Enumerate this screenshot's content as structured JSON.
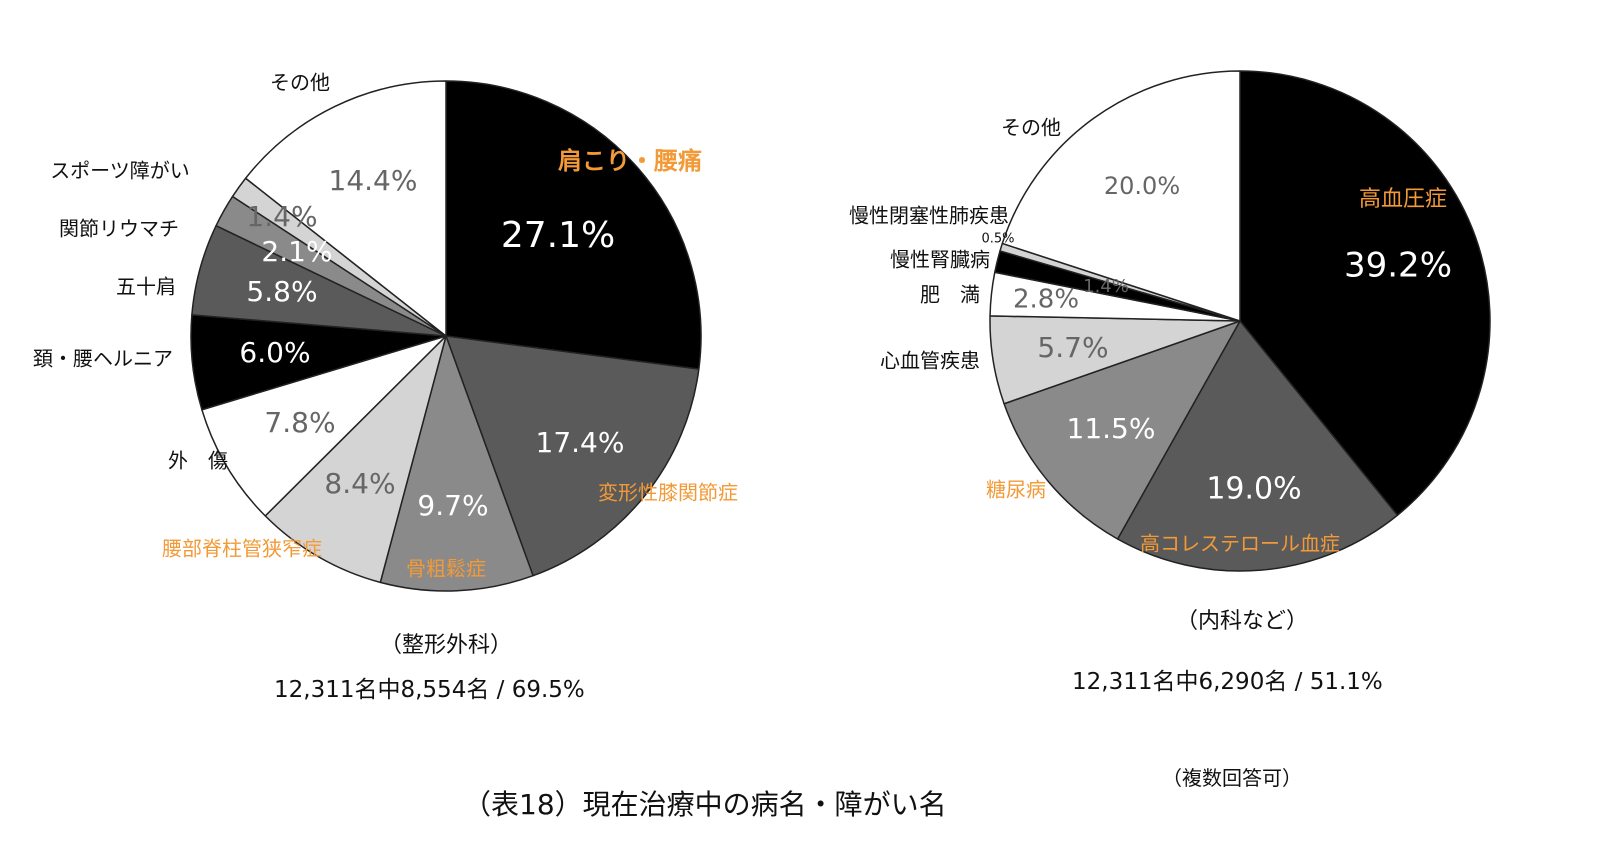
{
  "chart_data": [
    {
      "type": "pie",
      "title": "（整形外科）",
      "subtitle": "12,311名中8,554名 / 69.5%",
      "slices": [
        {
          "name": "肩こり・腰痛",
          "value": 27.1,
          "label": "27.1%",
          "color": "#000000",
          "label_color": "#ffffff",
          "name_color": "#f29a38"
        },
        {
          "name": "変形性膝関節症",
          "value": 17.4,
          "label": "17.4%",
          "color": "#5a5a5a",
          "label_color": "#ffffff",
          "name_color": "#f29a38"
        },
        {
          "name": "骨粗鬆症",
          "value": 9.7,
          "label": "9.7%",
          "color": "#8a8a8a",
          "label_color": "#ffffff",
          "name_color": "#f29a38"
        },
        {
          "name": "腰部脊柱管狭窄症",
          "value": 8.4,
          "label": "8.4%",
          "color": "#d4d4d4",
          "label_color": "#666666",
          "name_color": "#f29a38"
        },
        {
          "name": "外　傷",
          "value": 7.8,
          "label": "7.8%",
          "color": "#ffffff",
          "label_color": "#666666",
          "name_color": "#111111"
        },
        {
          "name": "頚・腰ヘルニア",
          "value": 6.0,
          "label": "6.0%",
          "color": "#000000",
          "label_color": "#ffffff",
          "name_color": "#111111"
        },
        {
          "name": "五十肩",
          "value": 5.8,
          "label": "5.8%",
          "color": "#5a5a5a",
          "label_color": "#ffffff",
          "name_color": "#111111"
        },
        {
          "name": "関節リウマチ",
          "value": 2.1,
          "label": "2.1%",
          "color": "#8a8a8a",
          "label_color": "#ffffff",
          "name_color": "#111111"
        },
        {
          "name": "スポーツ障がい",
          "value": 1.4,
          "label": "1.4%",
          "color": "#d4d4d4",
          "label_color": "#666666",
          "name_color": "#111111"
        },
        {
          "name": "その他",
          "value": 14.4,
          "label": "14.4%",
          "color": "#ffffff",
          "label_color": "#666666",
          "name_color": "#111111"
        }
      ]
    },
    {
      "type": "pie",
      "title": "（内科など）",
      "subtitle": "12,311名中6,290名 / 51.1%",
      "slices": [
        {
          "name": "高血圧症",
          "value": 39.2,
          "label": "39.2%",
          "color": "#000000",
          "label_color": "#ffffff",
          "name_color": "#f29a38"
        },
        {
          "name": "高コレステロール血症",
          "value": 19.0,
          "label": "19.0%",
          "color": "#5a5a5a",
          "label_color": "#ffffff",
          "name_color": "#f29a38"
        },
        {
          "name": "糖尿病",
          "value": 11.5,
          "label": "11.5%",
          "color": "#8a8a8a",
          "label_color": "#ffffff",
          "name_color": "#f29a38"
        },
        {
          "name": "心血管疾患",
          "value": 5.7,
          "label": "5.7%",
          "color": "#d4d4d4",
          "label_color": "#666666",
          "name_color": "#111111"
        },
        {
          "name": "肥　満",
          "value": 2.8,
          "label": "2.8%",
          "color": "#ffffff",
          "label_color": "#666666",
          "name_color": "#111111"
        },
        {
          "name": "慢性腎臓病",
          "value": 1.4,
          "label": "1.4%",
          "color": "#000000",
          "label_color": "#666666",
          "name_color": "#111111"
        },
        {
          "name": "慢性閉塞性肺疾患",
          "value": 0.5,
          "label": "0.5%",
          "color": "#d4d4d4",
          "label_color": "#111111",
          "name_color": "#111111"
        },
        {
          "name": "その他",
          "value": 20.0,
          "label": "20.0%",
          "color": "#ffffff",
          "label_color": "#666666",
          "name_color": "#111111"
        }
      ]
    }
  ],
  "page": {
    "caption": "（表18）現在治療中の病名・障がい名",
    "note": "（複数回答可）"
  }
}
